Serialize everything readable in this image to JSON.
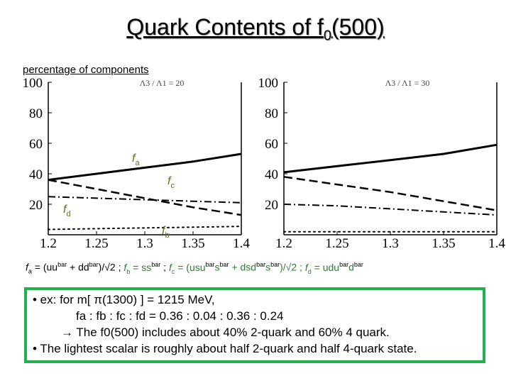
{
  "title": {
    "main": "Quark Contents of f",
    "sub": "0",
    "tail": "(500)"
  },
  "subtitle": "percentage of components",
  "chart_data": [
    {
      "type": "line",
      "annotation": "Λ3 / Λ1 = 20",
      "x": [
        1.2,
        1.25,
        1.3,
        1.35,
        1.4
      ],
      "xticks": [
        "1.2",
        "1.25",
        "1.3",
        "1.35",
        "1.4"
      ],
      "yticks": [
        "20",
        "40",
        "60",
        "80",
        "100"
      ],
      "xlim": [
        1.2,
        1.4
      ],
      "ylim": [
        0,
        100
      ],
      "series": [
        {
          "name": "fa",
          "style": "solid",
          "values": [
            36,
            40,
            44,
            48,
            53
          ]
        },
        {
          "name": "fc",
          "style": "dashed",
          "values": [
            36,
            30,
            24,
            18,
            13
          ]
        },
        {
          "name": "fd",
          "style": "dashdot",
          "values": [
            25,
            24,
            23,
            22,
            21
          ]
        },
        {
          "name": "fb",
          "style": "dotted",
          "values": [
            3.5,
            4,
            4.5,
            5,
            5.5
          ]
        }
      ],
      "labels": [
        {
          "main": "f",
          "sub": "a"
        },
        {
          "main": "f",
          "sub": "c"
        },
        {
          "main": "f",
          "sub": "d"
        },
        {
          "main": "f",
          "sub": "b"
        }
      ]
    },
    {
      "type": "line",
      "annotation": "Λ3 / Λ1 = 30",
      "x": [
        1.2,
        1.25,
        1.3,
        1.35,
        1.4
      ],
      "xticks": [
        "1.2",
        "1.25",
        "1.3",
        "1.35",
        "1.4"
      ],
      "yticks": [
        "20",
        "40",
        "60",
        "80",
        "100"
      ],
      "xlim": [
        1.2,
        1.4
      ],
      "ylim": [
        0,
        100
      ],
      "series": [
        {
          "name": "fa",
          "style": "solid",
          "values": [
            41,
            45,
            49,
            53,
            59
          ]
        },
        {
          "name": "fc",
          "style": "dashed",
          "values": [
            38,
            33,
            28,
            22,
            16
          ]
        },
        {
          "name": "fd",
          "style": "dashdot",
          "values": [
            20,
            19,
            17,
            15,
            13
          ]
        },
        {
          "name": "fb",
          "style": "dotted",
          "values": [
            2,
            2,
            2,
            2,
            2
          ]
        }
      ]
    }
  ],
  "formula": {
    "fa": "f",
    "fa_sub": "a",
    "eq1": " = (uu",
    "bar1": "bar",
    "t1": " + dd",
    "bar2": "bar",
    "t2": ")/√2  ; ",
    "fb": "f",
    "fb_sub": "b",
    "eq2": " = ss",
    "bar3": "bar",
    "t3": "  ; ",
    "fc": "f",
    "fc_sub": "c",
    "eq3": " = (usu",
    "bar4": "bar",
    "t4": "s",
    "bar5": "bar",
    "t5": " + dsd",
    "bar6": "bar",
    "t6": "s",
    "bar7": "bar",
    "t7": ")/√2  ; ",
    "fd": "f",
    "fd_sub": "d",
    "eq4": " = udu",
    "bar8": "bar",
    "t8": "d",
    "bar9": "bar"
  },
  "notes": {
    "line1": "• ex:  for  m[ π(1300) ] = 1215 MeV,",
    "line2": "fa : fb : fc : fd = 0.36 : 0.04 : 0.36 : 0.24",
    "line3": "→  The f0(500)  includes about 40% 2-quark and 60% 4 quark.",
    "line4": "• The lightest scalar is roughly about half 2-quark and half 4-quark state."
  }
}
